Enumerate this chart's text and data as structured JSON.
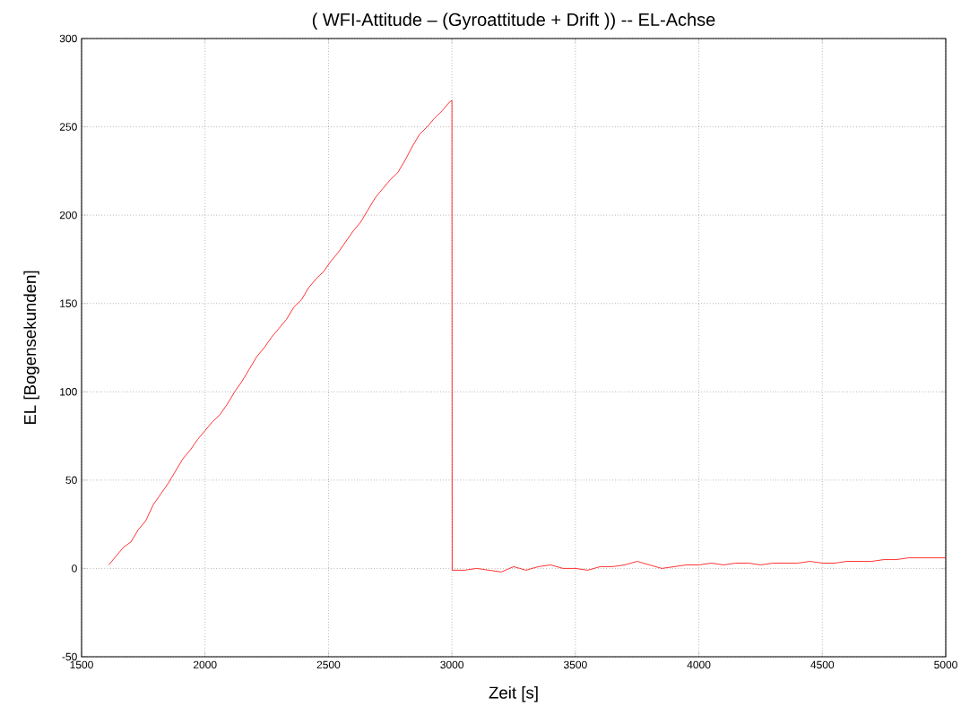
{
  "chart_data": {
    "type": "line",
    "title": "( WFI-Attitude – (Gyroattitude + Drift ))         -- EL-Achse",
    "xlabel": "Zeit [s]",
    "ylabel": "EL  [Bogensekunden]",
    "x": [
      1610,
      1640,
      1670,
      1700,
      1730,
      1760,
      1790,
      1820,
      1850,
      1880,
      1910,
      1940,
      1970,
      2000,
      2030,
      2060,
      2090,
      2120,
      2150,
      2180,
      2210,
      2240,
      2270,
      2300,
      2330,
      2360,
      2390,
      2420,
      2450,
      2480,
      2510,
      2540,
      2570,
      2600,
      2630,
      2660,
      2690,
      2720,
      2750,
      2780,
      2810,
      2840,
      2870,
      2900,
      2930,
      2960,
      2990,
      3000,
      3001,
      3050,
      3100,
      3150,
      3200,
      3250,
      3300,
      3350,
      3400,
      3450,
      3500,
      3550,
      3600,
      3650,
      3700,
      3750,
      3800,
      3850,
      3900,
      3950,
      4000,
      4050,
      4100,
      4150,
      4200,
      4250,
      4300,
      4350,
      4400,
      4450,
      4500,
      4550,
      4600,
      4650,
      4700,
      4750,
      4800,
      4850,
      4900,
      4950,
      5000
    ],
    "series": [
      {
        "color": "#ff0000",
        "values": [
          2,
          7,
          12,
          15,
          22,
          27,
          36,
          42,
          48,
          55,
          62,
          67,
          73,
          78,
          83,
          87,
          93,
          100,
          106,
          113,
          120,
          125,
          131,
          136,
          141,
          148,
          152,
          159,
          164,
          168,
          174,
          179,
          185,
          191,
          196,
          203,
          210,
          215,
          220,
          224,
          231,
          239,
          246,
          250,
          255,
          259,
          264,
          265,
          -1,
          -1,
          0,
          -1,
          -2,
          1,
          -1,
          1,
          2,
          0,
          0,
          -1,
          1,
          1,
          2,
          4,
          2,
          0,
          1,
          2,
          2,
          3,
          2,
          3,
          3,
          2,
          3,
          3,
          3,
          4,
          3,
          3,
          4,
          4,
          4,
          5,
          5,
          6,
          6,
          6,
          6
        ]
      }
    ],
    "xlim": [
      1500,
      5000
    ],
    "ylim": [
      -50,
      300
    ],
    "xticks": [
      1500,
      2000,
      2500,
      3000,
      3500,
      4000,
      4500,
      5000
    ],
    "yticks": [
      -50,
      0,
      50,
      100,
      150,
      200,
      250,
      300
    ],
    "grid": true,
    "marker": "none",
    "line_style": "solid"
  }
}
